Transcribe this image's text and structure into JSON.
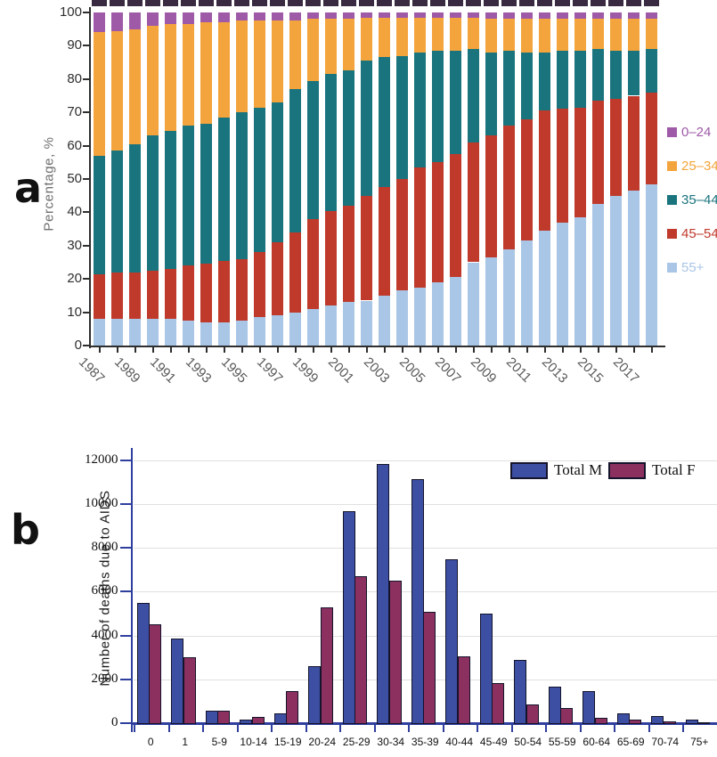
{
  "panel_a": {
    "label": "a",
    "ylabel": "Percentage, %",
    "topstrip_color": "#392a42",
    "legend": [
      {
        "label": "0–24",
        "color": "#9e5aa7"
      },
      {
        "label": "25–34",
        "color": "#f4a43c"
      },
      {
        "label": "35–44",
        "color": "#1a747e"
      },
      {
        "label": "45–54",
        "color": "#bf3a2b"
      },
      {
        "label": "55+",
        "color": "#a9c6e6"
      }
    ]
  },
  "panel_b": {
    "label": "b",
    "ylabel": "Number of deaths due to AIDS",
    "legend": [
      {
        "label": "Total M",
        "color": "#3d4fa3"
      },
      {
        "label": "Total F",
        "color": "#8c3060"
      }
    ]
  },
  "chart_data": [
    {
      "type": "bar",
      "variant": "stacked-percent",
      "title": "",
      "xlabel": "",
      "ylabel": "Percentage, %",
      "ylim": [
        0,
        100
      ],
      "yticks": [
        0,
        10,
        20,
        30,
        40,
        50,
        60,
        70,
        80,
        90,
        100
      ],
      "grid": false,
      "legend_position": "right",
      "categories": [
        1987,
        1988,
        1989,
        1990,
        1991,
        1992,
        1993,
        1994,
        1995,
        1996,
        1997,
        1998,
        1999,
        2000,
        2001,
        2002,
        2003,
        2004,
        2005,
        2006,
        2007,
        2008,
        2009,
        2010,
        2011,
        2012,
        2013,
        2014,
        2015,
        2016,
        2017,
        2018
      ],
      "xtick_labeled_every": 2,
      "series": [
        {
          "name": "55+",
          "color": "#a9c6e6",
          "values": [
            8,
            8,
            8,
            8,
            8,
            7.5,
            7,
            7,
            7.5,
            8.5,
            9,
            10,
            11,
            12,
            13,
            13.5,
            15,
            16.5,
            17.5,
            19,
            20.5,
            25,
            26.5,
            29,
            31.5,
            34.5,
            37,
            38.5,
            42.5,
            45,
            46.5,
            48.5
          ]
        },
        {
          "name": "45–54",
          "color": "#bf3a2b",
          "values": [
            13.5,
            14,
            14,
            14.5,
            15,
            16.5,
            17.5,
            18.5,
            18.5,
            19.5,
            22,
            24,
            27,
            28.5,
            29,
            31.5,
            32.5,
            33.5,
            36,
            36,
            37,
            36,
            36.5,
            37,
            36.5,
            36,
            34,
            33,
            31,
            29,
            28.5,
            27.5
          ]
        },
        {
          "name": "35–44",
          "color": "#1a747e",
          "values": [
            35.5,
            36.5,
            38.5,
            40.5,
            41.5,
            42,
            42,
            43,
            44,
            43.5,
            42,
            43,
            41.5,
            41,
            40.5,
            40.5,
            39,
            37,
            34.5,
            33.5,
            31,
            28,
            25,
            22.5,
            20,
            17.5,
            17.5,
            17,
            15.5,
            14.5,
            13.5,
            13
          ]
        },
        {
          "name": "25–34",
          "color": "#f4a43c",
          "values": [
            37,
            36,
            34.5,
            33,
            32,
            30.5,
            30.5,
            28.5,
            27.5,
            26,
            24.5,
            20.5,
            18.5,
            16.5,
            15.5,
            13,
            12,
            11.5,
            10.5,
            10,
            10,
            9.5,
            10,
            9.5,
            10,
            10,
            9.5,
            9.5,
            9,
            9.5,
            9.5,
            9
          ]
        },
        {
          "name": "0–24",
          "color": "#9e5aa7",
          "values": [
            6,
            5.5,
            5,
            4,
            3.5,
            3.5,
            3,
            3,
            2.5,
            2.5,
            2.5,
            2.5,
            2,
            2,
            2,
            1.5,
            1.5,
            1.5,
            1.5,
            1.5,
            1.5,
            1.5,
            2,
            2,
            2,
            2,
            2,
            2,
            2,
            2,
            2,
            2
          ]
        }
      ]
    },
    {
      "type": "bar",
      "variant": "grouped",
      "title": "",
      "xlabel": "",
      "ylabel": "Number of deaths due to AIDS",
      "ylim": [
        0,
        12000
      ],
      "yticks": [
        0,
        2000,
        4000,
        6000,
        8000,
        10000,
        12000
      ],
      "grid": true,
      "legend_position": "top-right",
      "categories": [
        "0",
        "1",
        "5-9",
        "10-14",
        "15-19",
        "20-24",
        "25-29",
        "30-34",
        "35-39",
        "40-44",
        "45-49",
        "50-54",
        "55-59",
        "60-64",
        "65-69",
        "70-74",
        "75+"
      ],
      "series": [
        {
          "name": "Total M",
          "color": "#3d4fa3",
          "values": [
            5500,
            3850,
            550,
            180,
            450,
            2600,
            9700,
            11850,
            11150,
            7500,
            5000,
            2900,
            1650,
            1450,
            430,
            320,
            150
          ]
        },
        {
          "name": "Total F",
          "color": "#8c3060",
          "values": [
            4500,
            3000,
            570,
            300,
            1450,
            5300,
            6700,
            6500,
            5100,
            3050,
            1850,
            850,
            680,
            250,
            150,
            100,
            60
          ]
        }
      ]
    }
  ]
}
